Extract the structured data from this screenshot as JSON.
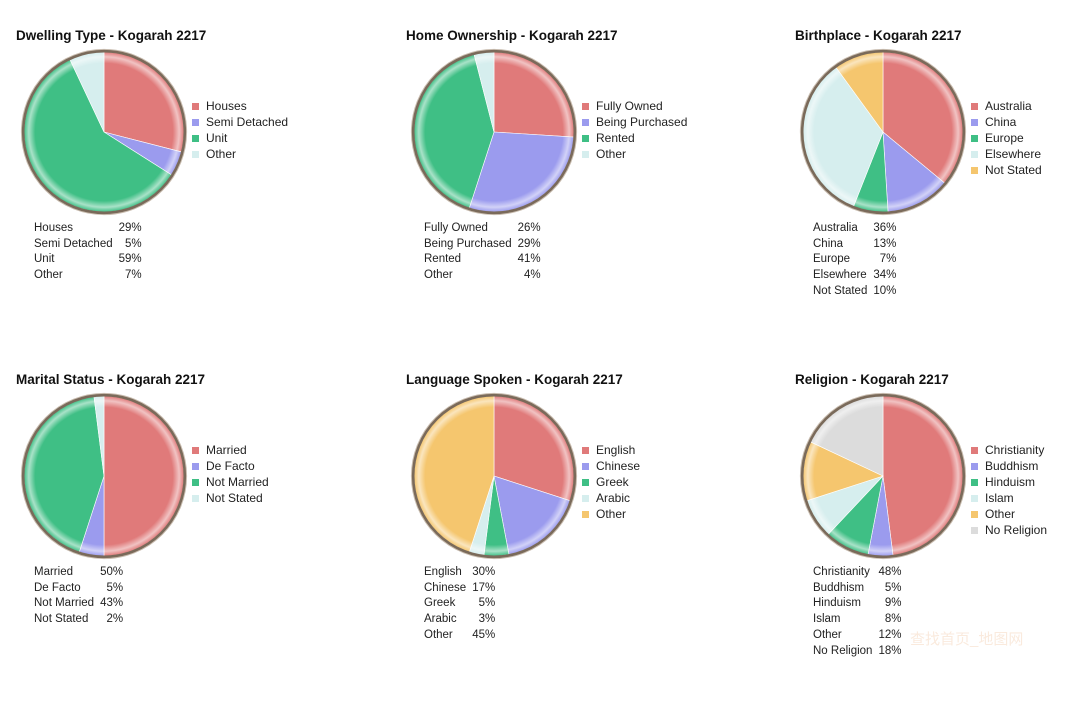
{
  "chart_data": [
    {
      "type": "pie",
      "title": "Dwelling Type - Kogarah 2217",
      "categories": [
        "Houses",
        "Semi Detached",
        "Unit",
        "Other"
      ],
      "values": [
        29,
        5,
        59,
        7
      ],
      "value_labels": [
        "29%",
        "5%",
        "59%",
        "7%"
      ],
      "colors": [
        "#e07a7a",
        "#9b9bee",
        "#3fbf85",
        "#d6eeee"
      ]
    },
    {
      "type": "pie",
      "title": "Home Ownership - Kogarah 2217",
      "categories": [
        "Fully Owned",
        "Being Purchased",
        "Rented",
        "Other"
      ],
      "values": [
        26,
        29,
        41,
        4
      ],
      "value_labels": [
        "26%",
        "29%",
        "41%",
        "4%"
      ],
      "colors": [
        "#e07a7a",
        "#9b9bee",
        "#3fbf85",
        "#d6eeee"
      ]
    },
    {
      "type": "pie",
      "title": "Birthplace - Kogarah 2217",
      "categories": [
        "Australia",
        "China",
        "Europe",
        "Elsewhere",
        "Not Stated"
      ],
      "values": [
        36,
        13,
        7,
        34,
        10
      ],
      "value_labels": [
        "36%",
        "13%",
        "7%",
        "34%",
        "10%"
      ],
      "colors": [
        "#e07a7a",
        "#9b9bee",
        "#3fbf85",
        "#d6eeee",
        "#f5c66e"
      ]
    },
    {
      "type": "pie",
      "title": "Marital Status - Kogarah 2217",
      "categories": [
        "Married",
        "De Facto",
        "Not Married",
        "Not Stated"
      ],
      "values": [
        50,
        5,
        43,
        2
      ],
      "value_labels": [
        "50%",
        "5%",
        "43%",
        "2%"
      ],
      "colors": [
        "#e07a7a",
        "#9b9bee",
        "#3fbf85",
        "#d6eeee"
      ]
    },
    {
      "type": "pie",
      "title": "Language Spoken - Kogarah 2217",
      "categories": [
        "English",
        "Chinese",
        "Greek",
        "Arabic",
        "Other"
      ],
      "values": [
        30,
        17,
        5,
        3,
        45
      ],
      "value_labels": [
        "30%",
        "17%",
        "5%",
        "3%",
        "45%"
      ],
      "colors": [
        "#e07a7a",
        "#9b9bee",
        "#3fbf85",
        "#d6eeee",
        "#f5c66e"
      ]
    },
    {
      "type": "pie",
      "title": "Religion - Kogarah 2217",
      "categories": [
        "Christianity",
        "Buddhism",
        "Hinduism",
        "Islam",
        "Other",
        "No Religion"
      ],
      "values": [
        48,
        5,
        9,
        8,
        12,
        18
      ],
      "value_labels": [
        "48%",
        "5%",
        "9%",
        "8%",
        "12%",
        "18%"
      ],
      "colors": [
        "#e07a7a",
        "#9b9bee",
        "#3fbf85",
        "#d6eeee",
        "#f5c66e",
        "#dcdcdc"
      ]
    }
  ],
  "watermark": "查找首页_地图网"
}
